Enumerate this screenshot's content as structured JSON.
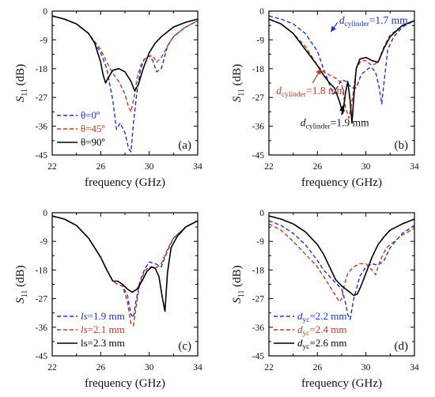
{
  "chart_data": [
    {
      "type": "line",
      "panel_label": "(a)",
      "xlabel": "frequency (GHz)",
      "ylabel_main": "S",
      "ylabel_sub": "11",
      "ylabel_unit": " (dB)",
      "xlim": [
        22,
        34
      ],
      "ylim": [
        -45,
        0
      ],
      "xticks": [
        "22",
        "26",
        "30",
        "34"
      ],
      "yticks": [
        "0",
        "-9",
        "-18",
        "-27",
        "-36",
        "-45"
      ],
      "legend_position": "bottom-left",
      "series": [
        {
          "name": "θ=0º",
          "color": "#1f2fd8",
          "dash": "dashed",
          "x": [
            22,
            23,
            24,
            25,
            26,
            26.5,
            27,
            27.3,
            27.6,
            28,
            28.3,
            28.5,
            28.7,
            29,
            29.3,
            29.6,
            30,
            30.3,
            30.6,
            31,
            31.5,
            32,
            33,
            34
          ],
          "y": [
            -1.5,
            -2.5,
            -4,
            -7,
            -13,
            -18,
            -28,
            -37,
            -35,
            -38,
            -43,
            -44,
            -35,
            -25,
            -18,
            -15,
            -14,
            -15.5,
            -19,
            -18,
            -11,
            -8,
            -5,
            -3
          ]
        },
        {
          "name": "θ=45º",
          "color": "#c03a1e",
          "dash": "dashed",
          "x": [
            22,
            23,
            24,
            25,
            26,
            26.5,
            27,
            27.5,
            28,
            28.3,
            28.5,
            28.8,
            29,
            29.3,
            29.6,
            30,
            30.3,
            30.6,
            31,
            31.5,
            32,
            33,
            34
          ],
          "y": [
            -1.5,
            -2.5,
            -4,
            -7,
            -12,
            -16,
            -19.5,
            -22,
            -26,
            -30,
            -31.5,
            -26,
            -21,
            -17,
            -15,
            -14,
            -14,
            -16,
            -14.5,
            -11,
            -8,
            -5,
            -3
          ]
        },
        {
          "name": "θ=90º",
          "color": "#000000",
          "dash": "solid",
          "x": [
            22,
            23,
            24,
            25,
            25.5,
            26,
            26.2,
            26.4,
            26.6,
            27,
            27.5,
            28,
            28.5,
            28.8,
            29.1,
            29.5,
            30,
            30.5,
            31,
            31.5,
            32,
            33,
            34
          ],
          "y": [
            -1.5,
            -2.5,
            -4,
            -7,
            -10,
            -16,
            -20,
            -22.5,
            -21,
            -18.5,
            -18,
            -19,
            -22,
            -25,
            -23,
            -18,
            -13,
            -10,
            -8,
            -6.5,
            -5,
            -3.5,
            -2.5
          ]
        }
      ]
    },
    {
      "type": "line",
      "panel_label": "(b)",
      "xlabel": "frequency (GHz)",
      "ylabel_main": "S",
      "ylabel_sub": "11",
      "ylabel_unit": " (dB)",
      "xlim": [
        22,
        34
      ],
      "ylim": [
        -45,
        0
      ],
      "xticks": [
        "22",
        "26",
        "30",
        "34"
      ],
      "yticks": [
        "0",
        "-9",
        "-18",
        "-27",
        "-36",
        "-45"
      ],
      "annotations": [
        {
          "italic": "d",
          "sub": "cylinder",
          "rest": "=1.7 mm",
          "color": "#1f2fd8",
          "x": 27.8,
          "y": -4
        },
        {
          "italic": "d",
          "sub": "cylinder",
          "rest": "=1.8 mm",
          "color": "#c03a1e",
          "x": 22.6,
          "y": -26
        },
        {
          "italic": "d",
          "sub": "cylinder",
          "rest": "=1.9 mm",
          "color": "#111111",
          "x": 24.6,
          "y": -36
        }
      ],
      "series": [
        {
          "name": "d cylinder=1.7 mm",
          "color": "#1f2fd8",
          "dash": "dashed",
          "x": [
            22,
            23,
            24,
            25,
            26,
            26.5,
            27,
            27.3,
            27.6,
            28,
            28.4,
            28.8,
            29.2,
            29.6,
            30,
            30.4,
            30.8,
            31.1,
            31.3,
            31.5,
            31.8,
            32.3,
            33,
            34
          ],
          "y": [
            -1.5,
            -2.5,
            -4,
            -7,
            -12.5,
            -18,
            -23,
            -26,
            -24,
            -21.5,
            -22,
            -24,
            -24,
            -20,
            -18.5,
            -17.5,
            -19,
            -24,
            -29,
            -22,
            -12,
            -8,
            -5,
            -3
          ]
        },
        {
          "name": "d cylinder=1.8 mm",
          "color": "#c03a1e",
          "dash": "dashed",
          "x": [
            22,
            23,
            24,
            25,
            25.5,
            26,
            26.5,
            27,
            27.5,
            28,
            28.3,
            28.6,
            28.9,
            29.2,
            29.6,
            30,
            30.5,
            31,
            31.5,
            32,
            33,
            34
          ],
          "y": [
            -2.5,
            -4,
            -7,
            -11,
            -14,
            -17,
            -19,
            -20,
            -21,
            -22.5,
            -30,
            -33.5,
            -27,
            -18,
            -15.5,
            -15.5,
            -17,
            -16,
            -11,
            -7.5,
            -4.5,
            -3
          ]
        },
        {
          "name": "d cylinder=1.9 mm",
          "color": "#000000",
          "dash": "solid",
          "x": [
            22,
            23,
            24,
            25,
            25.5,
            26,
            26.5,
            27,
            27.4,
            27.8,
            28.1,
            28.3,
            28.5,
            28.7,
            28.85,
            29,
            29.2,
            29.5,
            30,
            30.5,
            31,
            31.5,
            32,
            33,
            34
          ],
          "y": [
            -2.5,
            -4,
            -7,
            -12,
            -14.5,
            -17,
            -20,
            -22.5,
            -24,
            -28,
            -32,
            -26,
            -22,
            -28,
            -35,
            -27,
            -18,
            -15,
            -14.5,
            -15.5,
            -16,
            -11.5,
            -8,
            -4.5,
            -3
          ]
        }
      ]
    },
    {
      "type": "line",
      "panel_label": "(c)",
      "xlabel": "frequency (GHz)",
      "ylabel_main": "S",
      "ylabel_sub": "11",
      "ylabel_unit": " (dB)",
      "xlim": [
        22,
        34
      ],
      "ylim": [
        -45,
        0
      ],
      "xticks": [
        "22",
        "26",
        "30",
        "34"
      ],
      "yticks": [
        "0",
        "-9",
        "-18",
        "-27",
        "-36",
        "-45"
      ],
      "legend_position": "bottom-left",
      "series": [
        {
          "name": "ls=1.9 mm",
          "legend_italic": "ls",
          "legend_rest": "=1.9 mm",
          "color": "#1f2fd8",
          "dash": "dashed",
          "x": [
            22,
            23,
            24,
            25,
            26,
            26.5,
            27,
            27.4,
            27.8,
            28.2,
            28.5,
            28.7,
            28.9,
            29.2,
            29.6,
            30,
            30.5,
            31,
            31.5,
            32,
            33,
            34
          ],
          "y": [
            -1,
            -2,
            -4,
            -8,
            -14,
            -18,
            -21.5,
            -22.5,
            -23,
            -26,
            -32,
            -33,
            -28,
            -22,
            -18,
            -15.5,
            -16,
            -17,
            -12,
            -8,
            -4.5,
            -2.5
          ]
        },
        {
          "name": "ls=2.1 mm",
          "legend_italic": "ls",
          "legend_rest": "=2.1 mm",
          "color": "#c03a1e",
          "dash": "dashed",
          "x": [
            22,
            23,
            24,
            25,
            26,
            26.5,
            27,
            27.4,
            27.8,
            28.2,
            28.5,
            28.7,
            28.9,
            29.2,
            29.6,
            30,
            30.5,
            31,
            31.5,
            32,
            33,
            34
          ],
          "y": [
            -1,
            -2,
            -4,
            -8,
            -14,
            -18,
            -21.5,
            -22.5,
            -23,
            -28,
            -35,
            -35.5,
            -30,
            -23,
            -18.5,
            -17,
            -17.5,
            -16,
            -11.5,
            -8,
            -4.5,
            -2.5
          ]
        },
        {
          "name": "ls=2.3 mm",
          "legend_italic": "",
          "legend_rest": "ls=2.3 mm",
          "color": "#000000",
          "dash": "solid",
          "x": [
            22,
            23,
            24,
            25,
            26,
            26.5,
            27,
            27.4,
            27.8,
            28.2,
            28.6,
            29,
            29.4,
            29.8,
            30.2,
            30.5,
            30.8,
            31.1,
            31.3,
            31.5,
            31.8,
            32.3,
            33,
            34
          ],
          "y": [
            -1,
            -2,
            -4,
            -8,
            -14,
            -18,
            -21.5,
            -21.5,
            -22.5,
            -24,
            -25,
            -24,
            -21.5,
            -18.5,
            -17,
            -17.5,
            -20,
            -27,
            -31,
            -19,
            -11,
            -7.5,
            -4.5,
            -2.5
          ]
        }
      ]
    },
    {
      "type": "line",
      "panel_label": "(d)",
      "xlabel": "frequency (GHz)",
      "ylabel_main": "S",
      "ylabel_sub": "11",
      "ylabel_unit": " (dB)",
      "xlim": [
        22,
        34
      ],
      "ylim": [
        -45,
        0
      ],
      "xticks": [
        "22",
        "26",
        "30",
        "34"
      ],
      "yticks": [
        "0",
        "-9",
        "-18",
        "-27",
        "-36",
        "-45"
      ],
      "legend_position": "bottom-left",
      "series": [
        {
          "name": "dyc=2.2 mm",
          "legend_italic": "d",
          "legend_sub": "yc",
          "legend_rest": "=2.2 mm",
          "color": "#1f2fd8",
          "dash": "dashed",
          "x": [
            22,
            23,
            24,
            25,
            26,
            26.5,
            27,
            27.5,
            28,
            28.3,
            28.5,
            28.7,
            29,
            29.5,
            30,
            30.5,
            31,
            31.5,
            32,
            33,
            34
          ],
          "y": [
            -2.5,
            -4,
            -6.5,
            -10,
            -15,
            -18,
            -20,
            -22,
            -24,
            -28,
            -32,
            -33.5,
            -27,
            -20,
            -17,
            -16,
            -16.5,
            -15,
            -11,
            -6.5,
            -4
          ]
        },
        {
          "name": "dyc=2.4 mm",
          "legend_italic": "d",
          "legend_sub": "yc",
          "legend_rest": "=2.4 mm",
          "color": "#c03a1e",
          "dash": "dashed",
          "x": [
            22,
            23,
            24,
            25,
            26,
            26.5,
            27,
            27.5,
            27.8,
            28,
            28.2,
            28.5,
            29,
            29.5,
            30,
            30.5,
            30.8,
            31,
            31.3,
            31.7,
            32.5,
            33,
            34
          ],
          "y": [
            -3.5,
            -5.5,
            -9,
            -13,
            -17,
            -20,
            -23,
            -26,
            -28,
            -27,
            -23,
            -19,
            -17,
            -16,
            -16,
            -18,
            -19.5,
            -17,
            -14,
            -11,
            -8.5,
            -7,
            -5
          ]
        },
        {
          "name": "dyc=2.6 mm",
          "legend_italic": "d",
          "legend_sub": "yc",
          "legend_rest": "=2.6 mm",
          "color": "#000000",
          "dash": "solid",
          "x": [
            22,
            23,
            24,
            25,
            26,
            26.5,
            27,
            27.5,
            28,
            28.5,
            29,
            29.3,
            29.6,
            30,
            30.5,
            31,
            31.5,
            32,
            33,
            34
          ],
          "y": [
            -1,
            -2,
            -3.5,
            -6,
            -10,
            -13,
            -17,
            -21,
            -23,
            -24.5,
            -26,
            -25.5,
            -23,
            -19,
            -14,
            -10,
            -7.5,
            -5.5,
            -3.5,
            -2
          ]
        }
      ]
    }
  ]
}
